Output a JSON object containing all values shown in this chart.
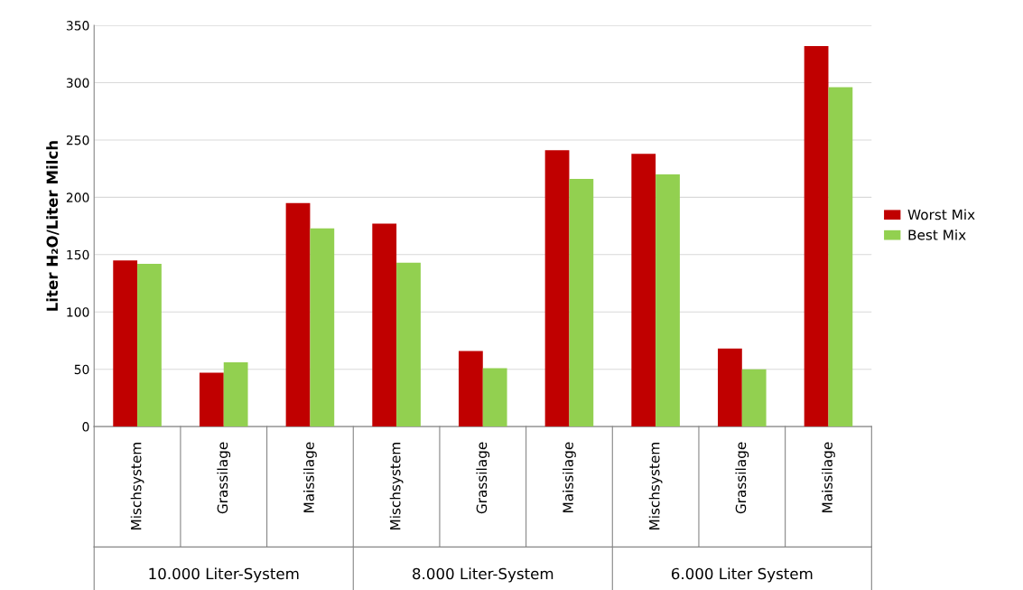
{
  "chart_data": {
    "type": "bar",
    "ylabel": "Liter H₂O/Liter Milch",
    "categories": [
      "Mischsystem",
      "Grassilage",
      "Maissilage",
      "Mischsystem",
      "Grassilage",
      "Maissilage",
      "Mischsystem",
      "Grassilage",
      "Maissilage"
    ],
    "series": [
      {
        "name": "Worst Mix",
        "color": "#c00000",
        "values": [
          145,
          47,
          195,
          177,
          66,
          241,
          238,
          68,
          332
        ]
      },
      {
        "name": "Best Mix",
        "color": "#92d050",
        "values": [
          142,
          56,
          173,
          143,
          51,
          216,
          220,
          50,
          296
        ]
      }
    ],
    "ylim": [
      0,
      350
    ],
    "yticks": [
      0,
      50,
      100,
      150,
      200,
      250,
      300,
      350
    ],
    "grid": "y",
    "legend": "right",
    "annotations": [
      "10.000 Liter-System",
      "8.000 Liter-System",
      "6.000 Liter System"
    ]
  }
}
